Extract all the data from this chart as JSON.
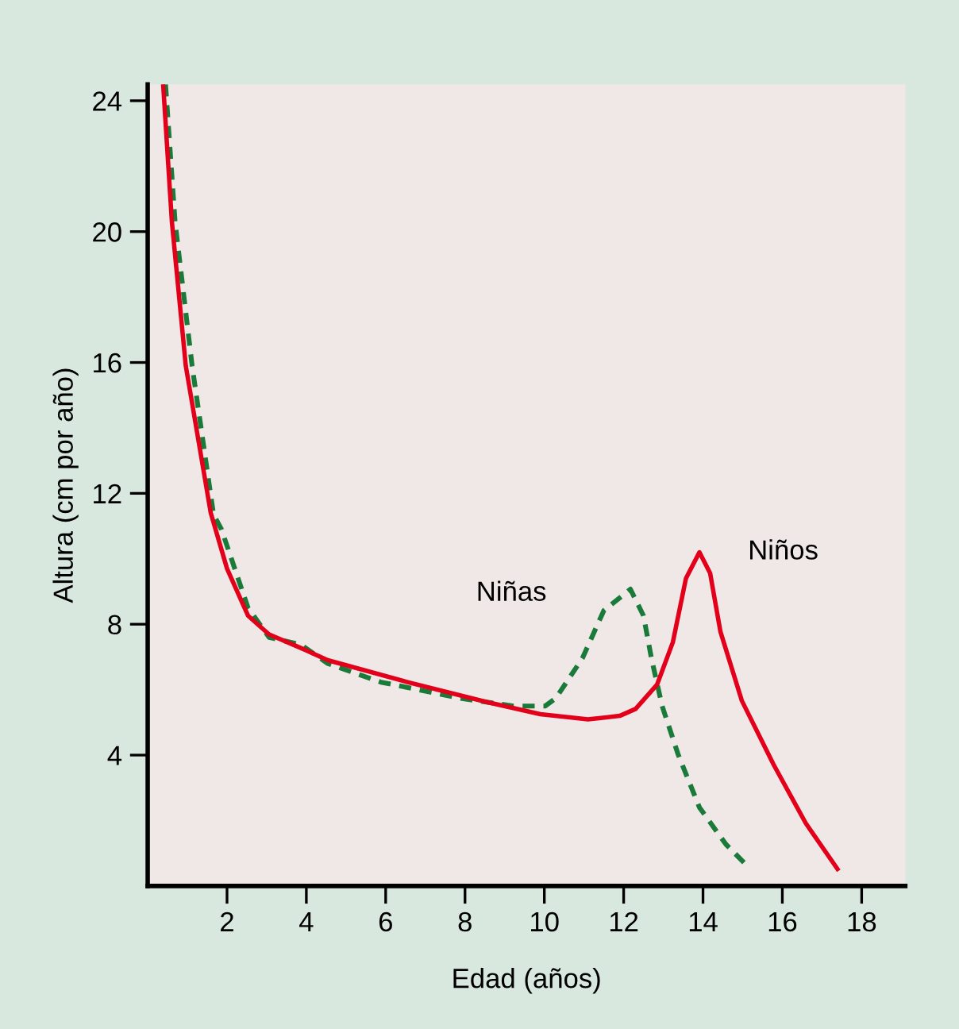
{
  "chart_data": {
    "type": "line",
    "xlabel": "Edad (años)",
    "ylabel": "Altura (cm por año)",
    "xlim": [
      0,
      19.1
    ],
    "ylim": [
      0,
      24.5
    ],
    "xticks": [
      2,
      4,
      6,
      8,
      10,
      12,
      14,
      16,
      18
    ],
    "yticks": [
      4,
      8,
      12,
      16,
      20,
      24
    ],
    "grid": false,
    "legend": false,
    "marker": "none",
    "series": [
      {
        "name": "Niñas",
        "color": "#1a7a3a",
        "line_style": "dashed",
        "x": [
          0.45,
          0.69,
          1.12,
          1.66,
          1.86,
          2.53,
          3.06,
          3.87,
          4.54,
          5.88,
          7.88,
          9.22,
          10.02,
          10.29,
          10.96,
          11.5,
          12.17,
          12.5,
          12.7,
          12.97,
          13.37,
          13.91,
          14.58,
          15.11
        ],
        "values": [
          24.5,
          20.3,
          15.9,
          11.35,
          10.9,
          8.5,
          7.6,
          7.37,
          6.8,
          6.23,
          5.74,
          5.5,
          5.5,
          5.74,
          6.96,
          8.42,
          9.07,
          8.26,
          6.96,
          5.5,
          4.03,
          2.4,
          1.27,
          0.62
        ]
      },
      {
        "name": "Niños",
        "color": "#e2001a",
        "line_style": "solid",
        "x": [
          0.39,
          0.61,
          0.96,
          1.59,
          2.0,
          2.53,
          3.06,
          4.0,
          4.54,
          6.55,
          8.55,
          9.9,
          11.1,
          11.9,
          12.3,
          12.84,
          13.24,
          13.57,
          13.91,
          14.18,
          14.44,
          14.98,
          15.78,
          16.59,
          17.39
        ],
        "values": [
          24.5,
          20.3,
          15.9,
          11.4,
          9.7,
          8.26,
          7.69,
          7.2,
          6.9,
          6.23,
          5.62,
          5.25,
          5.09,
          5.2,
          5.41,
          6.15,
          7.45,
          9.4,
          10.2,
          9.56,
          7.77,
          5.66,
          3.71,
          1.92,
          0.52
        ]
      }
    ]
  }
}
